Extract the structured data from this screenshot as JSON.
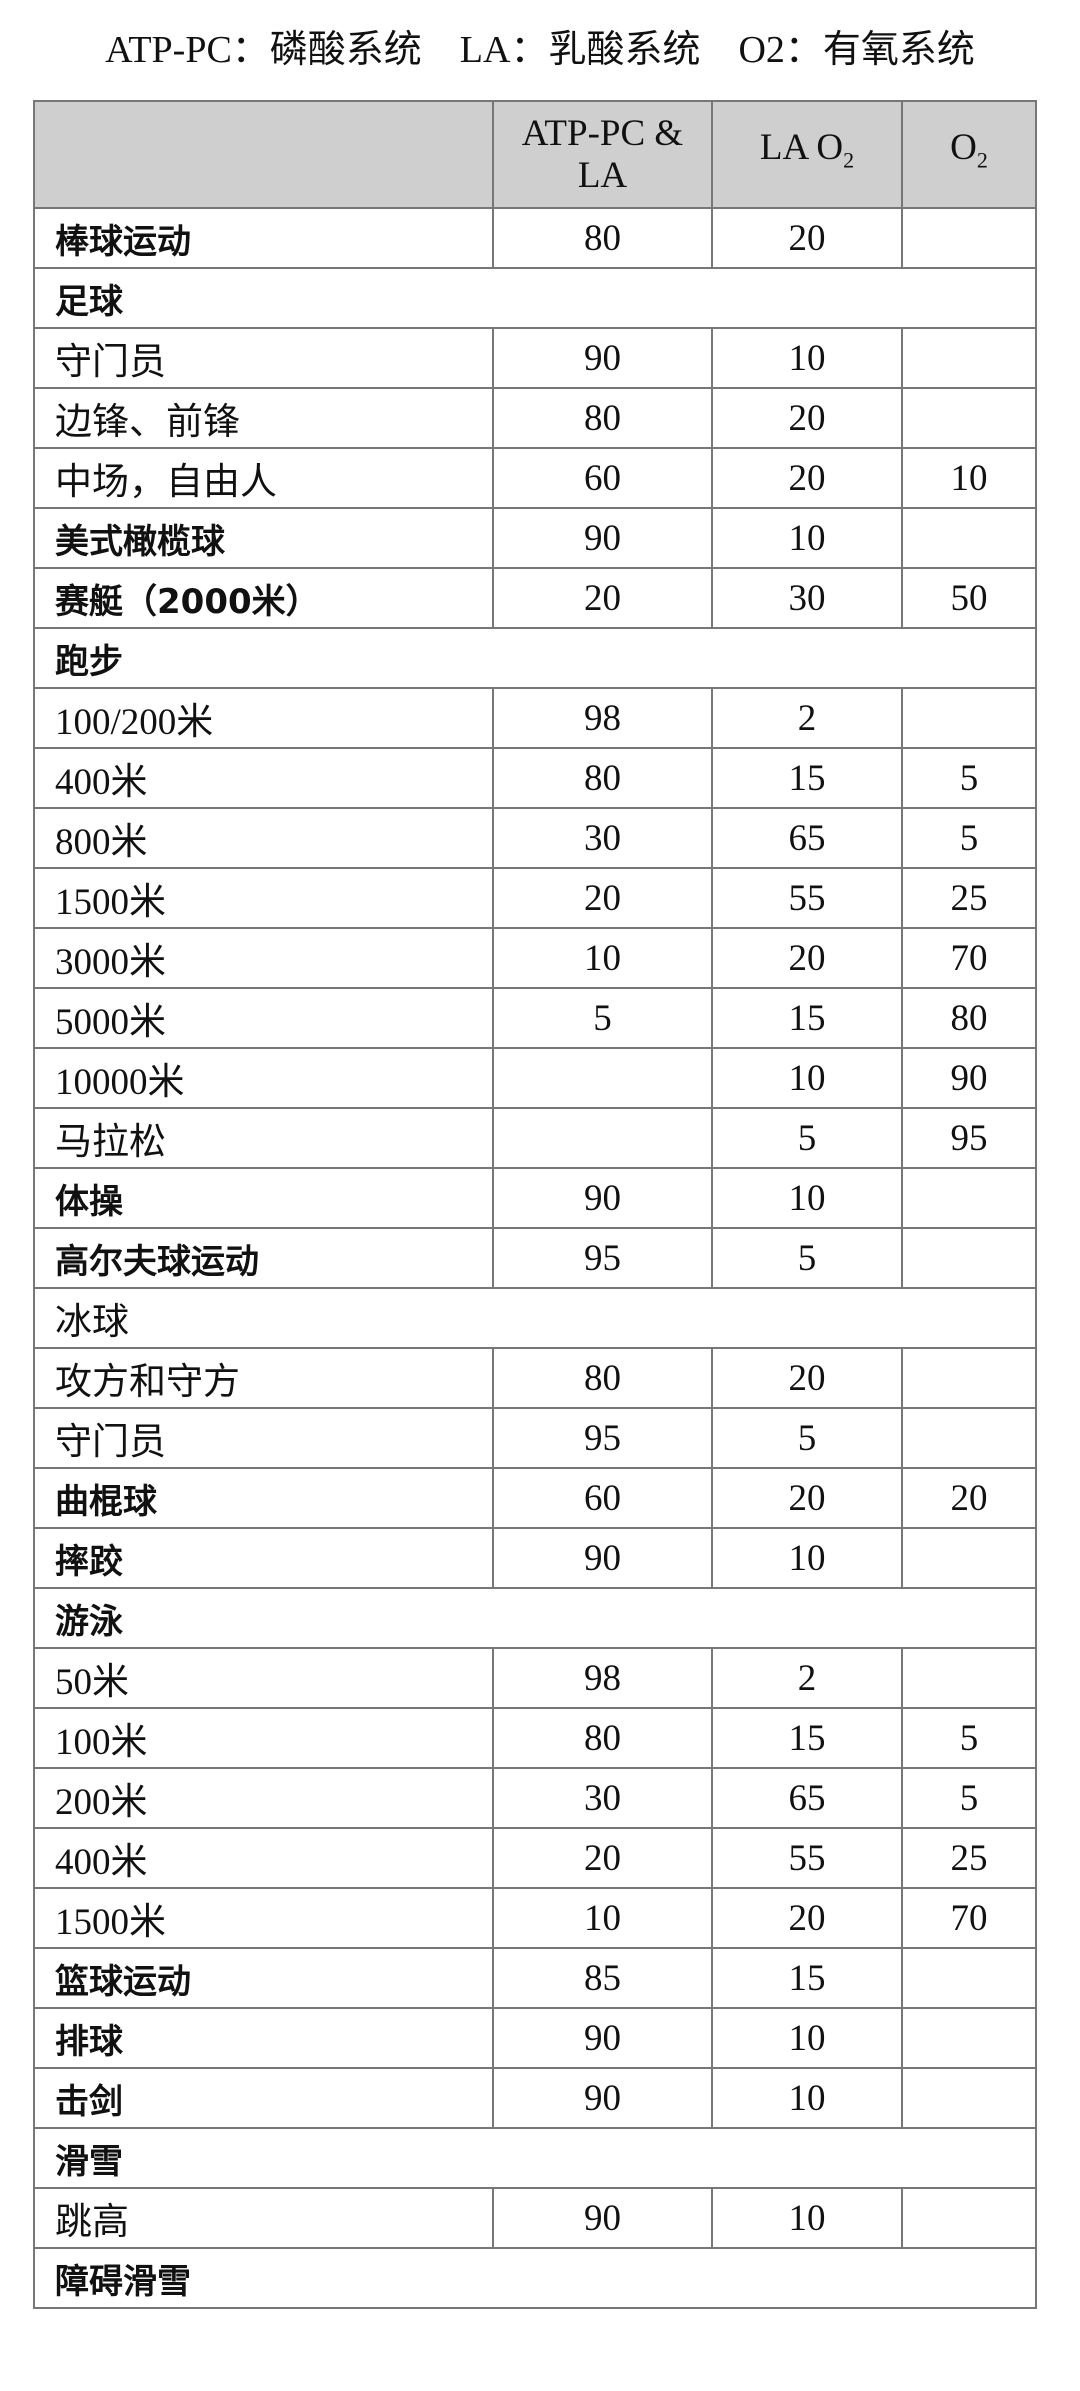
{
  "title": "ATP-PC：磷酸系统　LA：乳酸系统　O2：有氧系统",
  "header": {
    "c1": "ATP-PC & LA",
    "c2": "LA O",
    "c2_sub": "2",
    "c3": "O",
    "c3_sub": "2"
  },
  "header_bg": "#d0cfcf",
  "rows": [
    {
      "name": "棒球运动",
      "a": "80",
      "b": "20",
      "c": "",
      "bold": true
    },
    {
      "name": "足球",
      "a": "",
      "b": "",
      "c": "",
      "bold": true,
      "span": true
    },
    {
      "name": "守门员",
      "a": "90",
      "b": "10",
      "c": ""
    },
    {
      "name": "边锋、前锋",
      "a": "80",
      "b": "20",
      "c": ""
    },
    {
      "name": "中场，自由人",
      "a": "60",
      "b": "20",
      "c": "10"
    },
    {
      "name": "美式橄榄球",
      "a": "90",
      "b": "10",
      "c": "",
      "bold": true
    },
    {
      "name": "赛艇（2000米）",
      "a": "20",
      "b": "30",
      "c": "50",
      "bold": true
    },
    {
      "name": "跑步",
      "a": "",
      "b": "",
      "c": "",
      "bold": true,
      "span": true
    },
    {
      "name": "100/200米",
      "a": "98",
      "b": "2",
      "c": ""
    },
    {
      "name": "400米",
      "a": "80",
      "b": "15",
      "c": "5"
    },
    {
      "name": "800米",
      "a": "30",
      "b": "65",
      "c": "5"
    },
    {
      "name": "1500米",
      "a": "20",
      "b": "55",
      "c": "25"
    },
    {
      "name": "3000米",
      "a": "10",
      "b": "20",
      "c": "70"
    },
    {
      "name": "5000米",
      "a": "5",
      "b": "15",
      "c": "80"
    },
    {
      "name": "10000米",
      "a": "",
      "b": "10",
      "c": "90"
    },
    {
      "name": "马拉松",
      "a": "",
      "b": "5",
      "c": "95"
    },
    {
      "name": "体操",
      "a": "90",
      "b": "10",
      "c": "",
      "bold": true
    },
    {
      "name": "高尔夫球运动",
      "a": "95",
      "b": "5",
      "c": "",
      "bold": true
    },
    {
      "name": "冰球",
      "a": "",
      "b": "",
      "c": "",
      "span": true
    },
    {
      "name": "攻方和守方",
      "a": "80",
      "b": "20",
      "c": ""
    },
    {
      "name": "守门员",
      "a": "95",
      "b": "5",
      "c": ""
    },
    {
      "name": "曲棍球",
      "a": "60",
      "b": "20",
      "c": "20",
      "bold": true
    },
    {
      "name": "摔跤",
      "a": "90",
      "b": "10",
      "c": "",
      "bold": true
    },
    {
      "name": "游泳",
      "a": "",
      "b": "",
      "c": "",
      "bold": true,
      "span": true
    },
    {
      "name": "50米",
      "a": "98",
      "b": "2",
      "c": ""
    },
    {
      "name": "100米",
      "a": "80",
      "b": "15",
      "c": "5"
    },
    {
      "name": "200米",
      "a": "30",
      "b": "65",
      "c": "5"
    },
    {
      "name": "400米",
      "a": "20",
      "b": "55",
      "c": "25"
    },
    {
      "name": "1500米",
      "a": "10",
      "b": "20",
      "c": "70"
    },
    {
      "name": "篮球运动",
      "a": "85",
      "b": "15",
      "c": "",
      "bold": true
    },
    {
      "name": "排球",
      "a": "90",
      "b": "10",
      "c": "",
      "bold": true
    },
    {
      "name": "击剑",
      "a": "90",
      "b": "10",
      "c": "",
      "bold": true
    },
    {
      "name": "滑雪",
      "a": "",
      "b": "",
      "c": "",
      "bold": true,
      "span": true
    },
    {
      "name": "跳高",
      "a": "90",
      "b": "10",
      "c": ""
    },
    {
      "name": "障碍滑雪",
      "a": "",
      "b": "",
      "c": "",
      "bold": true,
      "span": true
    }
  ]
}
